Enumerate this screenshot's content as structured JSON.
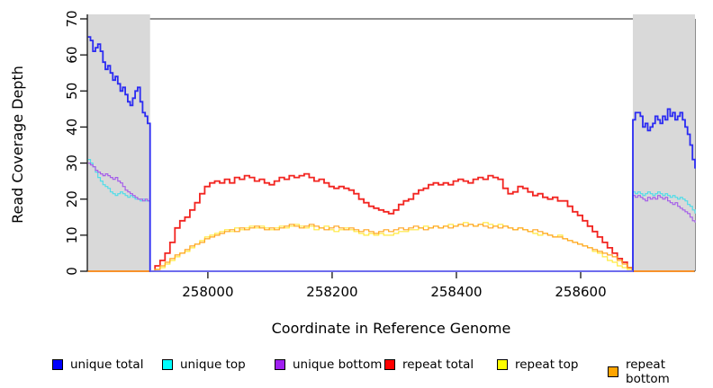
{
  "chart_data": {
    "type": "line",
    "xlabel": "Coordinate in Reference Genome",
    "ylabel": "Read Coverage Depth",
    "xlim": [
      257806,
      258784
    ],
    "ylim": [
      0,
      70
    ],
    "xticks": [
      258000,
      258200,
      258400,
      258600
    ],
    "yticks": [
      0,
      10,
      20,
      30,
      40,
      50,
      60,
      70
    ],
    "grid": false,
    "shaded_regions": [
      {
        "from": 257806,
        "to": 257907
      },
      {
        "from": 258684,
        "to": 258784
      }
    ],
    "shaded_color": "#d9d9d9",
    "zero_line_color": "#7b78ee",
    "series": [
      {
        "name": "repeat total",
        "line_color": "#f22420",
        "width": 1.8,
        "segments": [
          {
            "x0": 257807,
            "dx": 100,
            "values": [
              0,
              0
            ]
          },
          {
            "x0": 257907,
            "dx": 8,
            "values": [
              0,
              1.5,
              3,
              5,
              8,
              12,
              14,
              15,
              17,
              19,
              21.5,
              23.5,
              24.5,
              25,
              24.5,
              25.5,
              24.5,
              26,
              25.5,
              26.5,
              26,
              25,
              25.5,
              24.5,
              24,
              25,
              26,
              25.5,
              26.5,
              26,
              26.5,
              27,
              26,
              25,
              25.5,
              24.5,
              23.5,
              23,
              23.5,
              23,
              22.5,
              21.5,
              20,
              19,
              18,
              17.5,
              17,
              16.5,
              16,
              17,
              18.5,
              19.5,
              20,
              21.5,
              22.5,
              23,
              24,
              24.5,
              24,
              24.5,
              24,
              25,
              25.5,
              25,
              24.5,
              25.5,
              26,
              25.5,
              26.5,
              26,
              25.5,
              23,
              21.5,
              22,
              23.5,
              23,
              22,
              21,
              21.5,
              20.5,
              20,
              20.5,
              19.5,
              19.5,
              18,
              16.5,
              15.5,
              14,
              12.5,
              11,
              9.5,
              8,
              6.5,
              5,
              3.5,
              2.5,
              1,
              0
            ]
          },
          {
            "x0": 258683,
            "dx": 50,
            "values": [
              0,
              0,
              0
            ]
          }
        ]
      },
      {
        "name": "repeat top",
        "line_color": "#ffe93e",
        "width": 1.2,
        "segments": [
          {
            "x0": 257807,
            "dx": 100,
            "values": [
              0,
              0
            ]
          },
          {
            "x0": 257907,
            "dx": 8,
            "values": [
              0,
              0.5,
              1,
              2,
              3,
              4,
              5,
              5.5,
              6.5,
              7.5,
              8.5,
              9.5,
              10,
              10.5,
              11,
              11.5,
              11,
              12,
              11.5,
              12,
              12.5,
              12,
              12.5,
              12,
              11.5,
              12,
              12.5,
              12,
              12.5,
              13,
              12.5,
              12,
              12.5,
              11.5,
              12,
              12.5,
              11.5,
              11,
              11.5,
              12,
              11.5,
              11,
              10.5,
              10,
              10.5,
              10,
              10.5,
              10,
              10,
              10.5,
              11,
              11,
              11.5,
              11.5,
              12,
              12.5,
              12,
              12.5,
              12,
              12.5,
              13,
              12.5,
              13,
              13.5,
              13,
              12.5,
              13,
              13.5,
              13,
              12.5,
              13,
              12.5,
              12,
              11.5,
              12,
              11.5,
              11,
              10.5,
              10,
              10.5,
              10,
              9.5,
              10,
              9,
              8.5,
              8,
              7.5,
              7,
              6.5,
              5.5,
              5,
              4,
              3,
              2.5,
              1.5,
              1,
              0.5,
              0
            ]
          },
          {
            "x0": 258683,
            "dx": 50,
            "values": [
              0,
              0,
              0
            ]
          }
        ]
      },
      {
        "name": "repeat bottom",
        "line_color": "#ffa41e",
        "width": 1.2,
        "segments": [
          {
            "x0": 257807,
            "dx": 100,
            "values": [
              0,
              0
            ]
          },
          {
            "x0": 257907,
            "dx": 8,
            "values": [
              0,
              0.5,
              1.5,
              2.5,
              3.5,
              4.5,
              5,
              6,
              7,
              7.5,
              8,
              9,
              9.5,
              10,
              10.5,
              11,
              11.5,
              11,
              12,
              11.5,
              12,
              12.5,
              12,
              11.5,
              12,
              11.5,
              12,
              12.5,
              13,
              12.5,
              12,
              12.5,
              13,
              12.5,
              12,
              11.5,
              12,
              12.5,
              12,
              11.5,
              12,
              11.5,
              11,
              11.5,
              11,
              10.5,
              11,
              11.5,
              11,
              11.5,
              12,
              11.5,
              12,
              12.5,
              12,
              11.5,
              12,
              12.5,
              12,
              12.5,
              12,
              12.5,
              13,
              12.5,
              13,
              12.5,
              13,
              12.5,
              12,
              12.5,
              12,
              12.5,
              12,
              11.5,
              12,
              11.5,
              11,
              11.5,
              11,
              10.5,
              10,
              9.5,
              9.5,
              9,
              8.5,
              8,
              7.5,
              7,
              6.5,
              6,
              5.5,
              5,
              4.5,
              4,
              3,
              2,
              1,
              0
            ]
          },
          {
            "x0": 258683,
            "dx": 50,
            "values": [
              0,
              0,
              0
            ]
          }
        ]
      },
      {
        "name": "unique top",
        "line_color": "#4fdde9",
        "width": 1.2,
        "segments": [
          {
            "x0": 257807,
            "dx": 4,
            "values": [
              31,
              30,
              29,
              27.5,
              26,
              25,
              24,
              23.5,
              23,
              22,
              21.5,
              21,
              21.5,
              22,
              21.5,
              21,
              20.5,
              21,
              20.5,
              20,
              20,
              19.5,
              20,
              19.5,
              19.5,
              19.5
            ]
          },
          {
            "x0": 257907,
            "dx": 777,
            "values": [
              0,
              0
            ]
          },
          {
            "x0": 258684,
            "dx": 4,
            "values": [
              22,
              21.5,
              22,
              21.5,
              21,
              21.5,
              22,
              21.5,
              21,
              21.5,
              22,
              21.5,
              21,
              21.5,
              21,
              20.5,
              21,
              20.5,
              20,
              20.5,
              20,
              19.5,
              18.5,
              18,
              17,
              16
            ]
          }
        ]
      },
      {
        "name": "unique bottom",
        "line_color": "#a55fe9",
        "width": 1.2,
        "segments": [
          {
            "x0": 257807,
            "dx": 4,
            "values": [
              30,
              29.5,
              29,
              28,
              27.5,
              27,
              26.5,
              27,
              26.5,
              26,
              25.5,
              26,
              25,
              24.5,
              23.5,
              22.5,
              22,
              21.5,
              21,
              20.5,
              20,
              20,
              19.5,
              20,
              19.5,
              19
            ]
          },
          {
            "x0": 257907,
            "dx": 777,
            "values": [
              0,
              0
            ]
          },
          {
            "x0": 258684,
            "dx": 4,
            "values": [
              21,
              20.5,
              21,
              20.5,
              20,
              19.5,
              20.5,
              20,
              20.5,
              20,
              21,
              20.5,
              20,
              20.5,
              19.5,
              19,
              18.5,
              19,
              18,
              17.5,
              17,
              16.5,
              16,
              15,
              14,
              13.5
            ]
          }
        ]
      },
      {
        "name": "unique total",
        "line_color": "#2b2bf2",
        "width": 1.8,
        "segments": [
          {
            "x0": 257807,
            "dx": 4,
            "values": [
              65,
              64,
              61,
              62,
              63,
              61,
              58,
              56,
              57,
              55,
              53,
              54,
              52,
              50,
              51,
              49,
              47,
              46,
              48,
              50,
              51,
              47,
              44,
              43,
              41,
              38
            ]
          },
          {
            "x0": 257907,
            "dx": 777,
            "values": [
              0,
              0
            ]
          },
          {
            "x0": 258684,
            "dx": 4,
            "values": [
              42,
              44,
              44,
              43,
              40,
              41,
              39,
              40,
              41,
              43,
              42,
              41,
              43,
              42,
              45,
              43,
              44,
              42,
              43,
              44,
              42,
              40,
              38,
              35,
              31,
              28.5
            ]
          }
        ]
      }
    ],
    "legend": {
      "position": "bottom",
      "entries": [
        {
          "label": "unique total",
          "color_hex": "#0000ff"
        },
        {
          "label": "unique top",
          "color_hex": "#00ffff"
        },
        {
          "label": "unique bottom",
          "color_hex": "#a020f0"
        },
        {
          "label": "repeat total",
          "color_hex": "#ff0000"
        },
        {
          "label": "repeat top",
          "color_hex": "#ffff00"
        },
        {
          "label": "repeat bottom",
          "color_hex": "#ffa500"
        }
      ]
    }
  }
}
